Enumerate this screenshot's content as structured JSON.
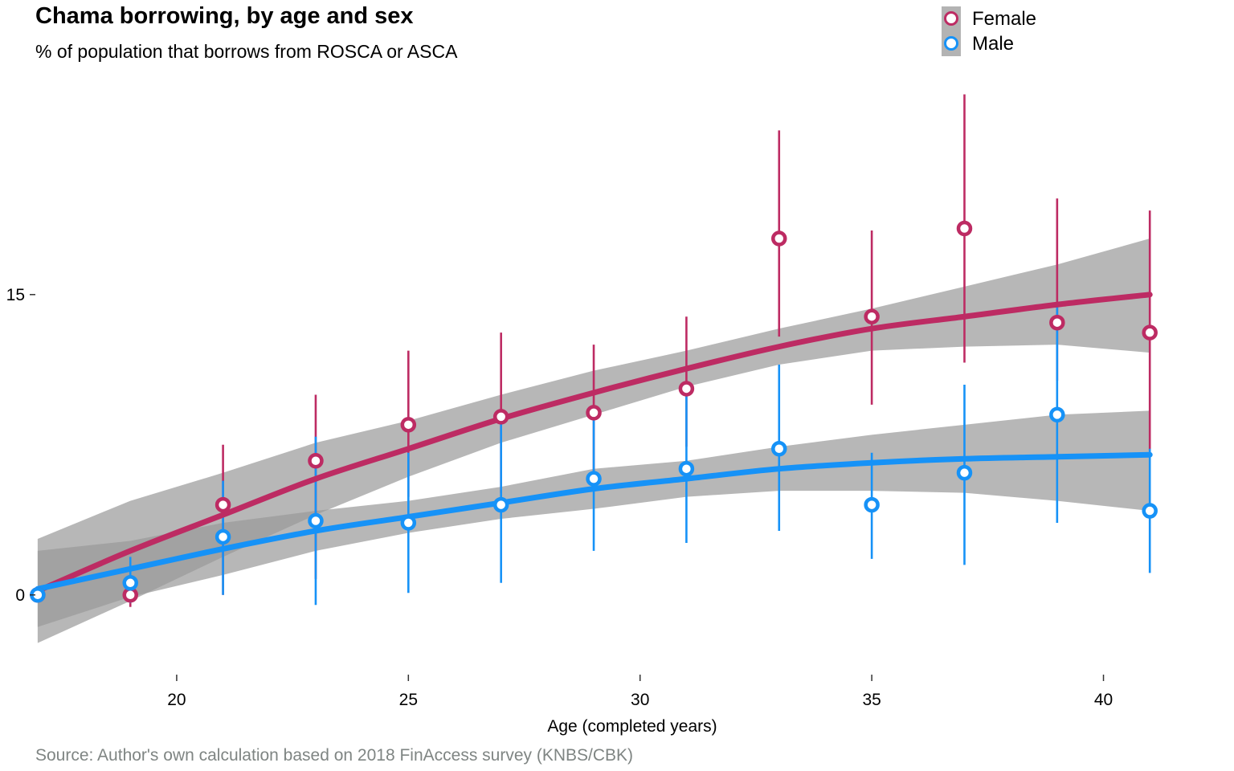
{
  "chart_data": {
    "type": "scatter",
    "title": "Chama borrowing, by age and sex",
    "subtitle": "% of population that borrows from ROSCA or ASCA",
    "xlabel": "Age (completed years)",
    "ylabel": "",
    "caption": "Source: Author's own calculation based on 2018 FinAccess survey (KNBS/CBK)",
    "xlim": [
      16.95,
      41.95
    ],
    "ylim": [
      -3.9,
      25.3
    ],
    "xticks": [
      20,
      25,
      30,
      35,
      40
    ],
    "xtick_labels": [
      "20",
      "25",
      "30",
      "35",
      "40"
    ],
    "yticks": [
      0,
      15
    ],
    "ytick_labels": [
      "0",
      "15"
    ],
    "grid": false,
    "legend_position": "top-right",
    "series": [
      {
        "name": "Female",
        "color": "#bd2b63",
        "x": [
          17,
          19,
          21,
          23,
          25,
          27,
          29,
          31,
          33,
          35,
          37,
          39,
          41
        ],
        "y": [
          0,
          0,
          4.5,
          6.7,
          8.5,
          8.9,
          9.1,
          10.3,
          17.8,
          13.9,
          18.3,
          13.6,
          13.1
        ],
        "ci_low": [
          0,
          -0.6,
          0,
          0.8,
          4.9,
          5.1,
          6.0,
          7.4,
          12.9,
          9.5,
          11.6,
          10.7,
          7.2
        ],
        "ci_high": [
          0,
          0.6,
          7.5,
          10.0,
          12.2,
          13.1,
          12.5,
          13.9,
          23.2,
          18.2,
          25.0,
          19.8,
          19.2
        ],
        "smooth_x": [
          17,
          19,
          21,
          23,
          25,
          27,
          29,
          31,
          33,
          35,
          37,
          39,
          41
        ],
        "smooth_y": [
          0.2,
          2.2,
          4.0,
          5.8,
          7.3,
          8.8,
          10.1,
          11.3,
          12.4,
          13.3,
          13.9,
          14.5,
          15.0
        ],
        "smooth_low": [
          -2.4,
          -0.3,
          1.9,
          4.0,
          5.9,
          7.6,
          9.0,
          10.4,
          11.5,
          12.2,
          12.4,
          12.5,
          12.1
        ],
        "smooth_high": [
          2.8,
          4.7,
          6.1,
          7.6,
          8.7,
          10.0,
          11.2,
          12.2,
          13.3,
          14.3,
          15.4,
          16.5,
          17.8
        ]
      },
      {
        "name": "Male",
        "color": "#1692f7",
        "x": [
          17,
          19,
          21,
          23,
          25,
          27,
          29,
          31,
          33,
          35,
          37,
          39,
          41
        ],
        "y": [
          0,
          0.6,
          2.9,
          3.7,
          3.6,
          4.5,
          5.8,
          6.3,
          7.3,
          4.5,
          6.1,
          9.0,
          4.2
        ],
        "ci_low": [
          0,
          -0.4,
          0,
          -0.5,
          0.1,
          0.6,
          2.2,
          2.6,
          3.2,
          1.8,
          1.5,
          3.6,
          1.1
        ],
        "ci_high": [
          0,
          1.9,
          5.7,
          7.9,
          7.1,
          9.0,
          9.3,
          10.3,
          11.5,
          7.1,
          10.5,
          14.5,
          7.3
        ],
        "smooth_x": [
          17,
          19,
          21,
          23,
          25,
          27,
          29,
          31,
          33,
          35,
          37,
          39,
          41
        ],
        "smooth_y": [
          0.3,
          1.3,
          2.3,
          3.2,
          3.9,
          4.6,
          5.3,
          5.8,
          6.3,
          6.6,
          6.8,
          6.9,
          7.0
        ],
        "smooth_low": [
          -1.6,
          -0.1,
          1.0,
          2.2,
          3.1,
          3.8,
          4.3,
          4.9,
          5.2,
          5.2,
          5.1,
          4.7,
          4.2
        ],
        "smooth_high": [
          2.2,
          2.7,
          3.6,
          4.2,
          4.7,
          5.4,
          6.3,
          6.7,
          7.4,
          8.0,
          8.5,
          9.0,
          9.2
        ]
      }
    ]
  },
  "colors": {
    "ribbon": "#999999",
    "caption": "#7f8583"
  }
}
